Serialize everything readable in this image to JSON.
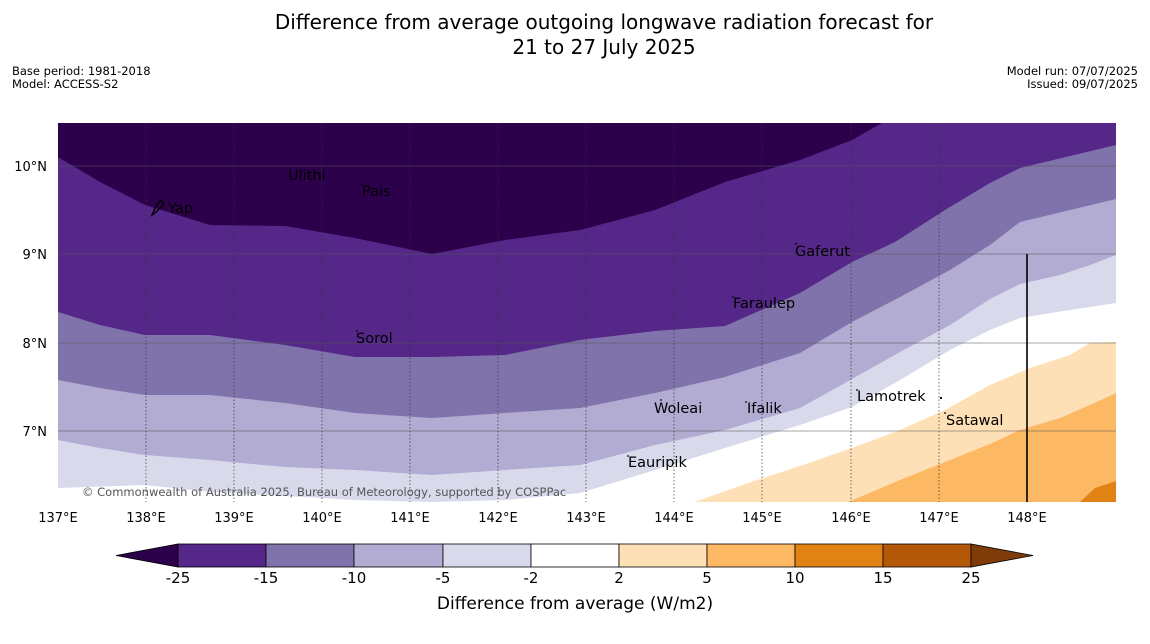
{
  "title_line1": "Difference from average outgoing longwave radiation forecast for",
  "title_line2": "21 to 27 July 2025",
  "base_period": "Base period: 1981-2018",
  "model": "Model: ACCESS-S2",
  "model_run": "Model run: 07/07/2025",
  "issued": "Issued: 09/07/2025",
  "copyright": "© Commonwealth of Australia 2025, Bureau of Meteorology, supported by COSPPac",
  "colorbar_label": "Difference from average (W/m2)",
  "colorbar_ticks": [
    "-25",
    "-15",
    "-10",
    "-5",
    "-2",
    "2",
    "5",
    "10",
    "15",
    "25"
  ],
  "colorbar_colors": {
    "below_min": "#2d004b",
    "bins": [
      "#542788",
      "#8073ac",
      "#b2abd2",
      "#d8daeb",
      "#ffffff",
      "#fee0b6",
      "#fdb863",
      "#e08214",
      "#b35806"
    ],
    "above_max": "#7f3b08"
  },
  "lon_labels": [
    "137°E",
    "138°E",
    "139°E",
    "140°E",
    "141°E",
    "142°E",
    "143°E",
    "144°E",
    "145°E",
    "146°E",
    "147°E",
    "148°E"
  ],
  "lat_labels": [
    "10°N",
    "9°N",
    "8°N",
    "7°N"
  ],
  "places": [
    {
      "name": "Ulithi"
    },
    {
      "name": "Pais"
    },
    {
      "name": "Yap"
    },
    {
      "name": "Gaferut"
    },
    {
      "name": "Faraulep"
    },
    {
      "name": "Sorol"
    },
    {
      "name": "Woleai"
    },
    {
      "name": "Ifalik"
    },
    {
      "name": "Lamotrek"
    },
    {
      "name": "Satawal"
    },
    {
      "name": "Eauripik"
    }
  ]
}
